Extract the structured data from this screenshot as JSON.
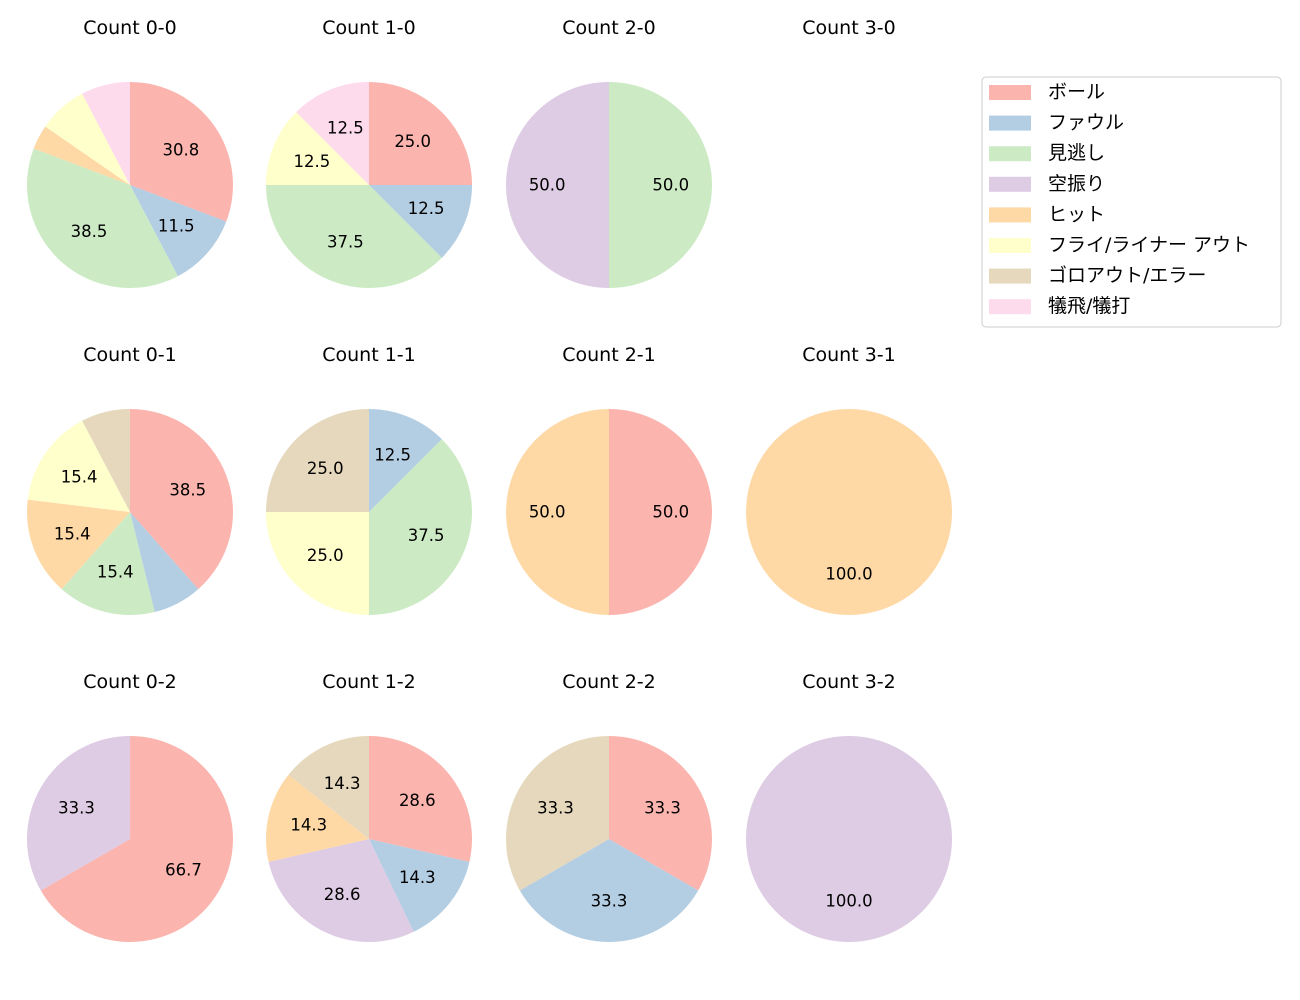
{
  "chart_data": {
    "type": "pie",
    "categories": [
      "ボール",
      "ファウル",
      "見逃し",
      "空振り",
      "ヒット",
      "フライ/ライナー アウト",
      "ゴロアウト/エラー",
      "犠飛/犠打"
    ],
    "colors": [
      "#fbb4ae",
      "#b3cde3",
      "#ccebc5",
      "#decbe4",
      "#fed9a6",
      "#ffffcc",
      "#e5d8bd",
      "#fddaec"
    ],
    "start_angle": 90,
    "direction": "clockwise",
    "label_format": "percent, 1 decimal; slices under 10% unlabeled",
    "legend": "top-right",
    "pies": [
      {
        "title": "Count 0-0",
        "values": [
          8,
          3,
          10,
          0,
          1,
          2,
          0,
          2
        ]
      },
      {
        "title": "Count 1-0",
        "values": [
          2,
          1,
          3,
          0,
          0,
          1,
          0,
          1
        ]
      },
      {
        "title": "Count 2-0",
        "values": [
          0,
          0,
          1,
          1,
          0,
          0,
          0,
          0
        ]
      },
      {
        "title": "Count 3-0",
        "values": [
          0,
          0,
          0,
          0,
          0,
          0,
          0,
          0
        ]
      },
      {
        "title": "Count 0-1",
        "values": [
          5,
          1,
          2,
          0,
          2,
          2,
          1,
          0
        ]
      },
      {
        "title": "Count 1-1",
        "values": [
          0,
          1,
          3,
          0,
          0,
          2,
          2,
          0
        ]
      },
      {
        "title": "Count 2-1",
        "values": [
          1,
          0,
          0,
          0,
          1,
          0,
          0,
          0
        ]
      },
      {
        "title": "Count 3-1",
        "values": [
          0,
          0,
          0,
          0,
          1,
          0,
          0,
          0
        ]
      },
      {
        "title": "Count 0-2",
        "values": [
          2,
          0,
          0,
          1,
          0,
          0,
          0,
          0
        ]
      },
      {
        "title": "Count 1-2",
        "values": [
          2,
          1,
          0,
          2,
          1,
          0,
          1,
          0
        ]
      },
      {
        "title": "Count 2-2",
        "values": [
          1,
          1,
          0,
          0,
          0,
          0,
          1,
          0
        ]
      },
      {
        "title": "Count 3-2",
        "values": [
          0,
          0,
          0,
          1,
          0,
          0,
          0,
          0
        ]
      }
    ]
  }
}
